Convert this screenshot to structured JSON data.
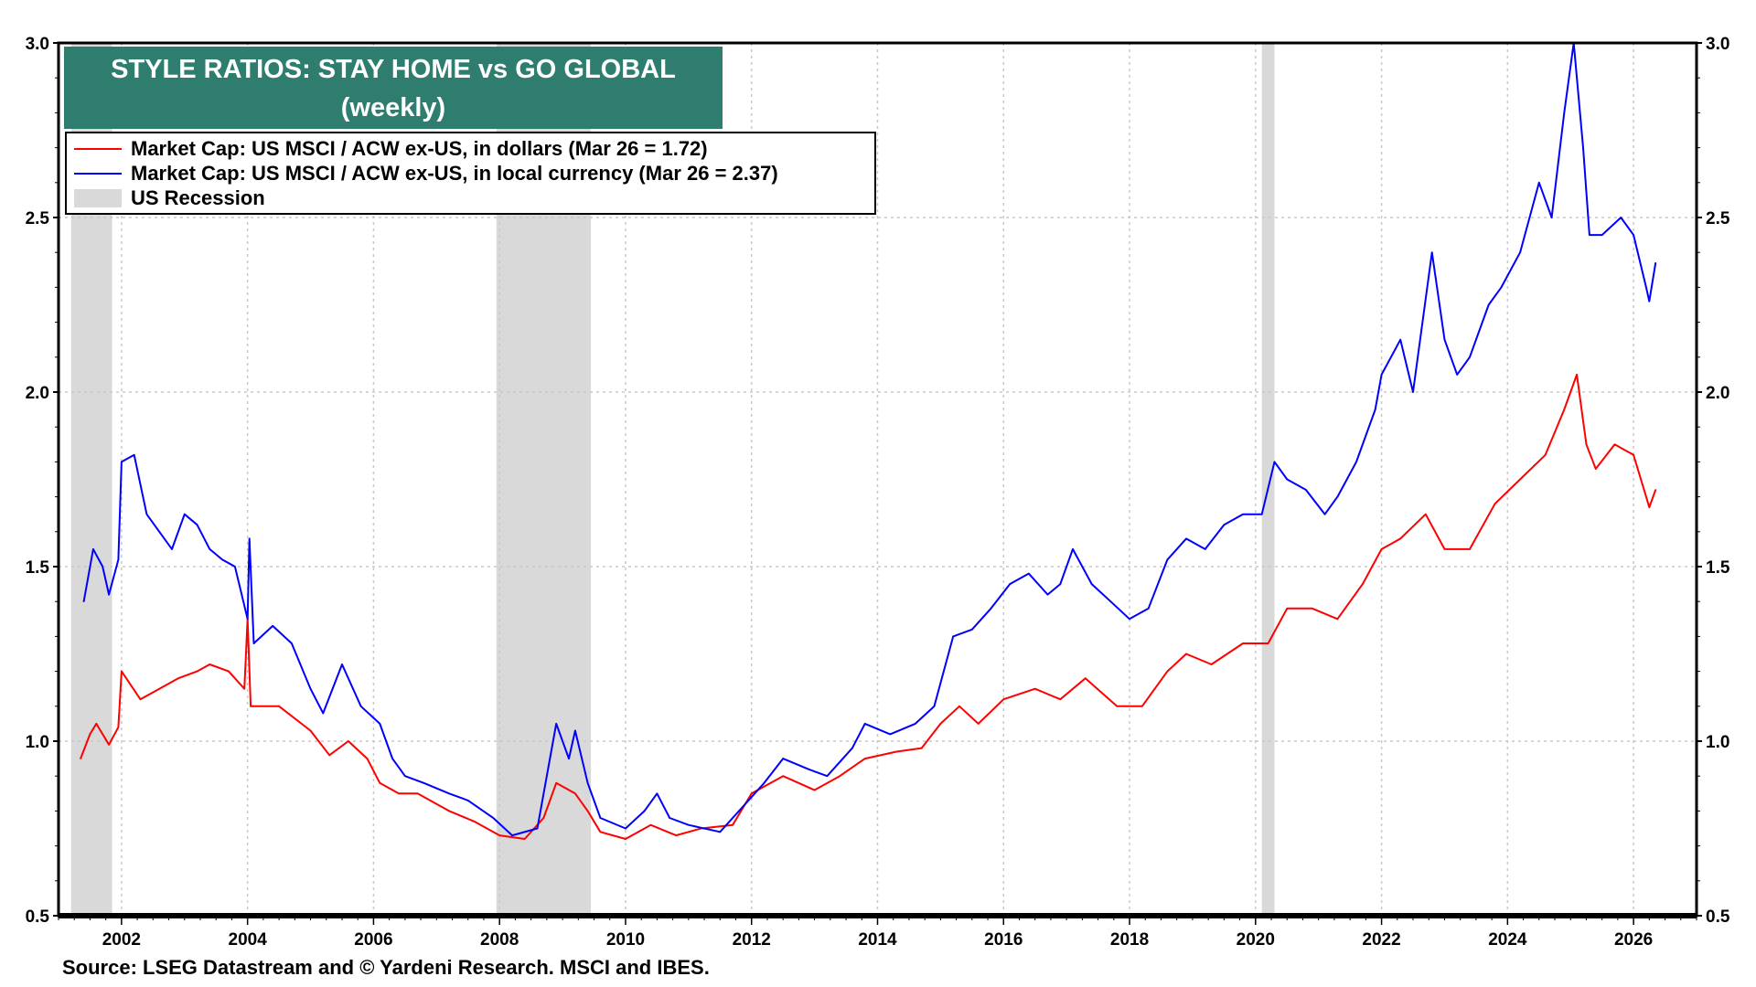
{
  "chart_data": {
    "type": "line",
    "title": "STYLE RATIOS: STAY HOME vs GO GLOBAL",
    "subtitle": "(weekly)",
    "xlim": [
      2001,
      2027
    ],
    "ylim": [
      0.5,
      3.0
    ],
    "x_ticks": [
      "2002",
      "2004",
      "2006",
      "2008",
      "2010",
      "2012",
      "2014",
      "2016",
      "2018",
      "2020",
      "2022",
      "2024",
      "2026"
    ],
    "y_ticks": [
      "0.5",
      "1.0",
      "1.5",
      "2.0",
      "2.5",
      "3.0"
    ],
    "grid": true,
    "legend_placement": "top-left",
    "recessions": [
      [
        2001.2,
        2001.85
      ],
      [
        2007.95,
        2009.45
      ],
      [
        2020.1,
        2020.3
      ]
    ],
    "recession_label": "US Recession",
    "recession_color": "#d9d9d9",
    "source": "Source: LSEG Datastream and © Yardeni Research. MSCI and IBES.",
    "series": [
      {
        "name": "Market Cap: US MSCI  / ACW ex-US, in dollars (Mar 26 = 1.72)",
        "color": "#ff0000",
        "x": [
          2001.35,
          2001.5,
          2001.6,
          2001.8,
          2001.95,
          2002.0,
          2002.3,
          2002.6,
          2002.9,
          2003.2,
          2003.4,
          2003.7,
          2003.95,
          2004.0,
          2004.05,
          2004.5,
          2005.0,
          2005.3,
          2005.6,
          2005.9,
          2006.1,
          2006.4,
          2006.7,
          2007.2,
          2007.6,
          2008.0,
          2008.4,
          2008.7,
          2008.9,
          2009.2,
          2009.4,
          2009.6,
          2010.0,
          2010.4,
          2010.8,
          2011.2,
          2011.7,
          2012.0,
          2012.5,
          2013.0,
          2013.4,
          2013.8,
          2014.3,
          2014.7,
          2015.0,
          2015.3,
          2015.6,
          2016.0,
          2016.5,
          2016.9,
          2017.3,
          2017.8,
          2018.2,
          2018.6,
          2018.9,
          2019.3,
          2019.8,
          2020.2,
          2020.5,
          2020.9,
          2021.3,
          2021.7,
          2022.0,
          2022.3,
          2022.7,
          2023.0,
          2023.4,
          2023.8,
          2024.2,
          2024.6,
          2024.9,
          2025.1,
          2025.25,
          2025.4,
          2025.7,
          2026.0,
          2026.2,
          2026.25,
          2026.35
        ],
        "y": [
          0.95,
          1.02,
          1.05,
          0.99,
          1.04,
          1.2,
          1.12,
          1.15,
          1.18,
          1.2,
          1.22,
          1.2,
          1.15,
          1.35,
          1.1,
          1.1,
          1.03,
          0.96,
          1.0,
          0.95,
          0.88,
          0.85,
          0.85,
          0.8,
          0.77,
          0.73,
          0.72,
          0.78,
          0.88,
          0.85,
          0.8,
          0.74,
          0.72,
          0.76,
          0.73,
          0.75,
          0.76,
          0.85,
          0.9,
          0.86,
          0.9,
          0.95,
          0.97,
          0.98,
          1.05,
          1.1,
          1.05,
          1.12,
          1.15,
          1.12,
          1.18,
          1.1,
          1.1,
          1.2,
          1.25,
          1.22,
          1.28,
          1.28,
          1.38,
          1.38,
          1.35,
          1.45,
          1.55,
          1.58,
          1.65,
          1.55,
          1.55,
          1.68,
          1.75,
          1.82,
          1.95,
          2.05,
          1.85,
          1.78,
          1.85,
          1.82,
          1.7,
          1.67,
          1.72
        ]
      },
      {
        "name": "Market Cap: US MSCI  / ACW ex-US, in local currency (Mar 26 = 2.37)",
        "color": "#0000ff",
        "x": [
          2001.4,
          2001.55,
          2001.7,
          2001.8,
          2001.95,
          2002.0,
          2002.2,
          2002.4,
          2002.6,
          2002.8,
          2003.0,
          2003.2,
          2003.4,
          2003.6,
          2003.8,
          2004.0,
          2004.03,
          2004.1,
          2004.4,
          2004.7,
          2005.0,
          2005.2,
          2005.5,
          2005.8,
          2006.1,
          2006.3,
          2006.5,
          2006.8,
          2007.2,
          2007.5,
          2007.9,
          2008.2,
          2008.6,
          2008.8,
          2008.9,
          2009.1,
          2009.2,
          2009.4,
          2009.6,
          2010.0,
          2010.3,
          2010.5,
          2010.7,
          2011.0,
          2011.5,
          2011.8,
          2012.2,
          2012.5,
          2012.9,
          2013.2,
          2013.6,
          2013.8,
          2014.2,
          2014.6,
          2014.9,
          2015.2,
          2015.5,
          2015.8,
          2016.1,
          2016.4,
          2016.7,
          2016.9,
          2017.1,
          2017.4,
          2017.7,
          2018.0,
          2018.3,
          2018.6,
          2018.9,
          2019.2,
          2019.5,
          2019.8,
          2020.1,
          2020.3,
          2020.5,
          2020.8,
          2021.1,
          2021.3,
          2021.6,
          2021.9,
          2022.0,
          2022.3,
          2022.5,
          2022.8,
          2023.0,
          2023.2,
          2023.4,
          2023.7,
          2023.9,
          2024.2,
          2024.5,
          2024.7,
          2024.9,
          2025.05,
          2025.2,
          2025.3,
          2025.5,
          2025.8,
          2026.0,
          2026.2,
          2026.25,
          2026.35
        ],
        "y": [
          1.4,
          1.55,
          1.5,
          1.42,
          1.52,
          1.8,
          1.82,
          1.65,
          1.6,
          1.55,
          1.65,
          1.62,
          1.55,
          1.52,
          1.5,
          1.35,
          1.58,
          1.28,
          1.33,
          1.28,
          1.15,
          1.08,
          1.22,
          1.1,
          1.05,
          0.95,
          0.9,
          0.88,
          0.85,
          0.83,
          0.78,
          0.73,
          0.75,
          0.95,
          1.05,
          0.95,
          1.03,
          0.88,
          0.78,
          0.75,
          0.8,
          0.85,
          0.78,
          0.76,
          0.74,
          0.8,
          0.88,
          0.95,
          0.92,
          0.9,
          0.98,
          1.05,
          1.02,
          1.05,
          1.1,
          1.3,
          1.32,
          1.38,
          1.45,
          1.48,
          1.42,
          1.45,
          1.55,
          1.45,
          1.4,
          1.35,
          1.38,
          1.52,
          1.58,
          1.55,
          1.62,
          1.65,
          1.65,
          1.8,
          1.75,
          1.72,
          1.65,
          1.7,
          1.8,
          1.95,
          2.05,
          2.15,
          2.0,
          2.4,
          2.15,
          2.05,
          2.1,
          2.25,
          2.3,
          2.4,
          2.6,
          2.5,
          2.8,
          3.0,
          2.7,
          2.45,
          2.45,
          2.5,
          2.45,
          2.3,
          2.26,
          2.37
        ]
      }
    ]
  }
}
